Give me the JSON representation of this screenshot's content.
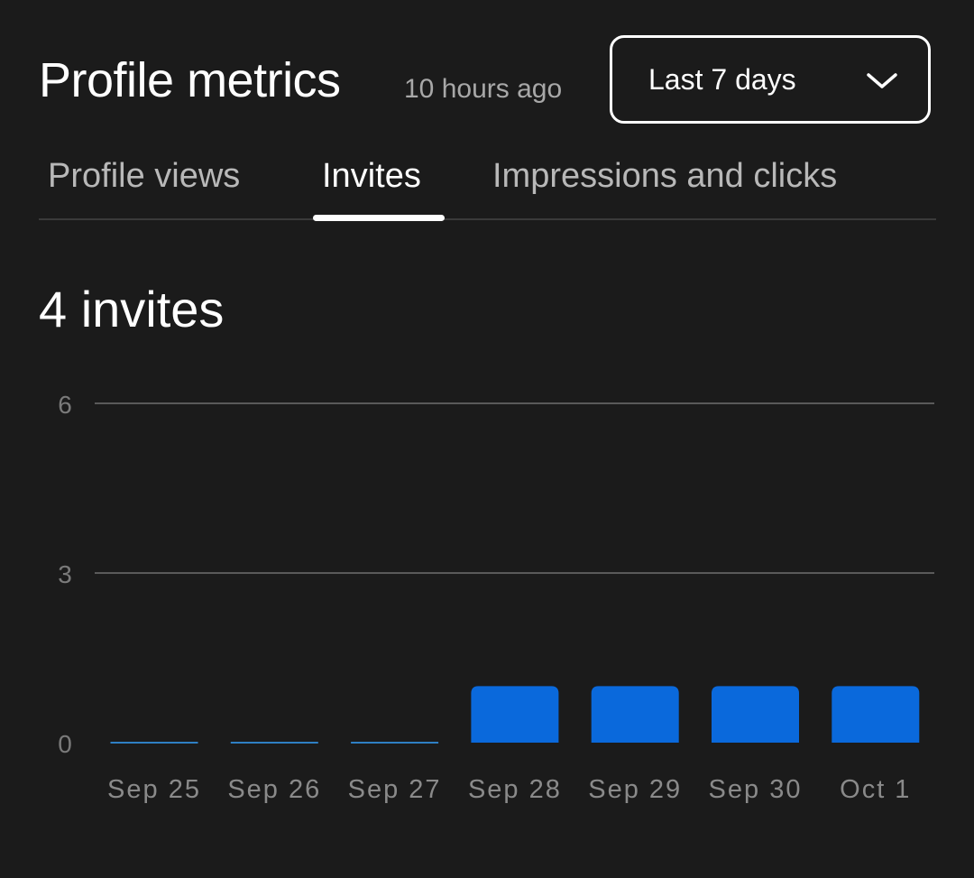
{
  "header": {
    "title": "Profile metrics",
    "updated": "10 hours ago",
    "range_select": {
      "value": "Last 7 days",
      "icon": "chevron-down-icon"
    }
  },
  "tabs": [
    {
      "label": "Profile views",
      "active": false
    },
    {
      "label": "Invites",
      "active": true
    },
    {
      "label": "Impressions and clicks",
      "active": false
    }
  ],
  "summary": {
    "count_label": "4 invites"
  },
  "colors": {
    "bar": "#0a69dc",
    "background": "#1b1b1b"
  },
  "chart_data": {
    "type": "bar",
    "categories": [
      "Sep 25",
      "Sep 26",
      "Sep 27",
      "Sep 28",
      "Sep 29",
      "Sep 30",
      "Oct 1"
    ],
    "values": [
      0,
      0,
      0,
      1,
      1,
      1,
      1
    ],
    "yticks": [
      0,
      3,
      6
    ],
    "ylim": [
      0,
      6
    ],
    "grid": true
  }
}
